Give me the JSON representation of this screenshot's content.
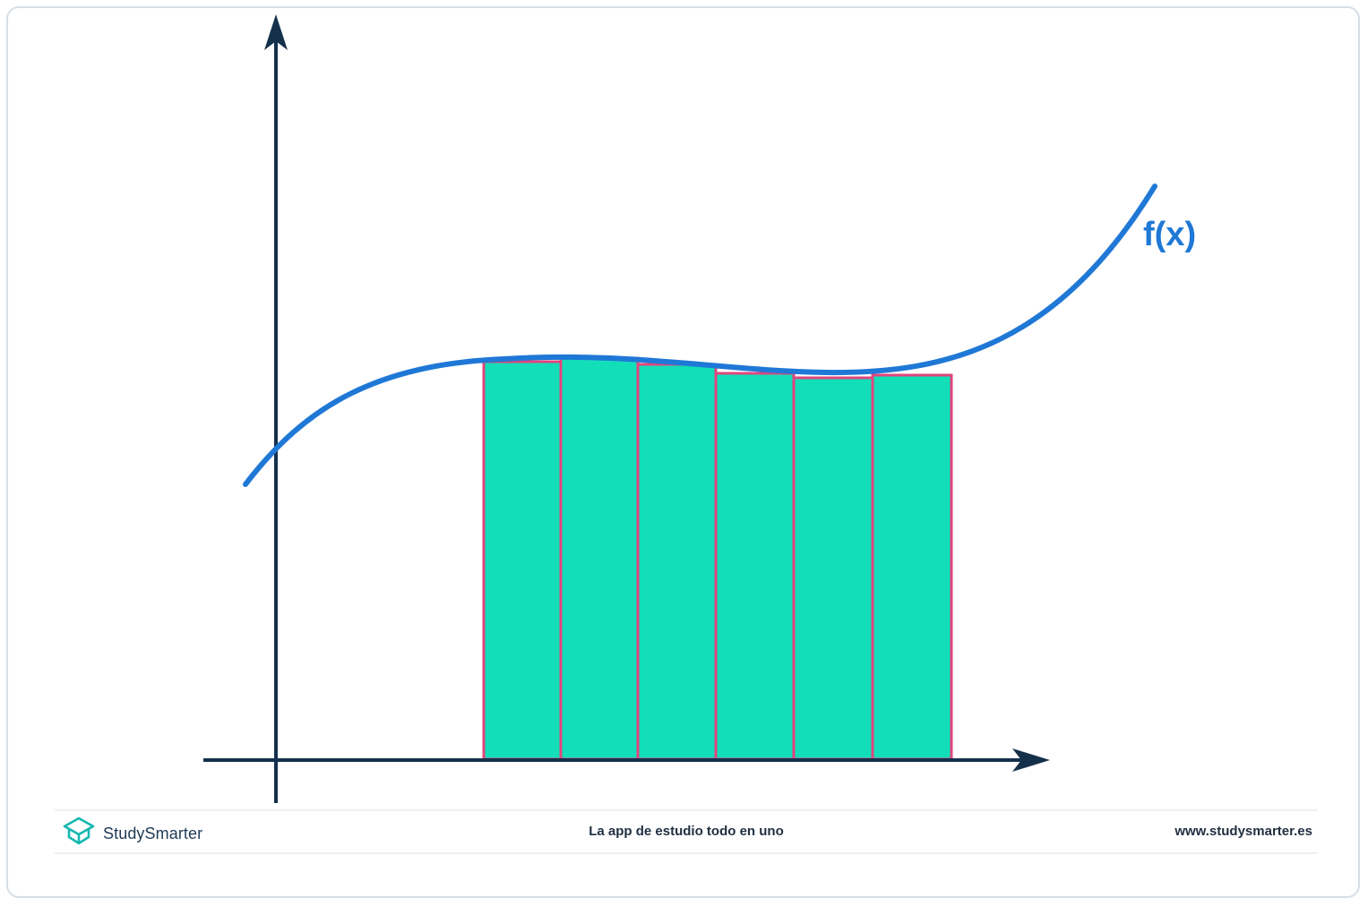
{
  "diagram": {
    "function_label": "f(x)",
    "colors": {
      "axis": "#15304b",
      "curve": "#1f78d6",
      "rect_fill": "#12deb9",
      "rect_stroke": "#e0457e"
    },
    "rectangles_count": 6
  },
  "footer": {
    "brand_name": "StudySmarter",
    "logo_icon": "studysmarter-logo-icon",
    "tagline": "La app de estudio todo en uno",
    "website": "www.studysmarter.es"
  }
}
